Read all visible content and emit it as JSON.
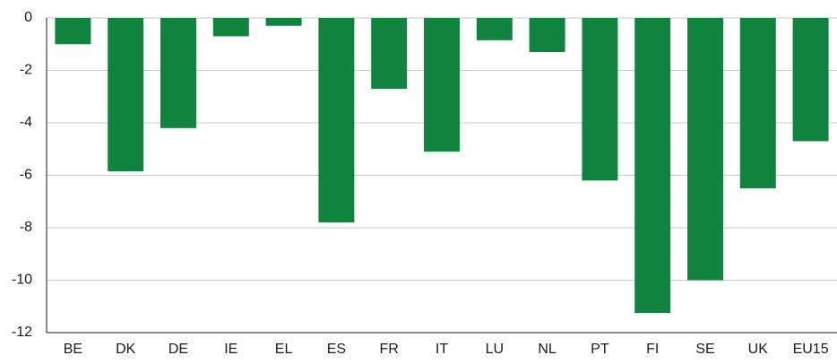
{
  "chart_data": {
    "type": "bar",
    "categories": [
      "BE",
      "DK",
      "DE",
      "IE",
      "EL",
      "ES",
      "FR",
      "IT",
      "LU",
      "NL",
      "PT",
      "FI",
      "SE",
      "UK",
      "EU15"
    ],
    "values": [
      -1.0,
      -5.85,
      -4.2,
      -0.7,
      -0.3,
      -7.8,
      -2.7,
      -5.1,
      -0.85,
      -1.3,
      -6.2,
      -11.25,
      -10.0,
      -6.5,
      -4.7
    ],
    "color": "#10843f",
    "ylim": [
      -12,
      0
    ],
    "yticks": [
      0,
      -2,
      -4,
      -6,
      -8,
      -10,
      -12
    ],
    "grid": true
  }
}
